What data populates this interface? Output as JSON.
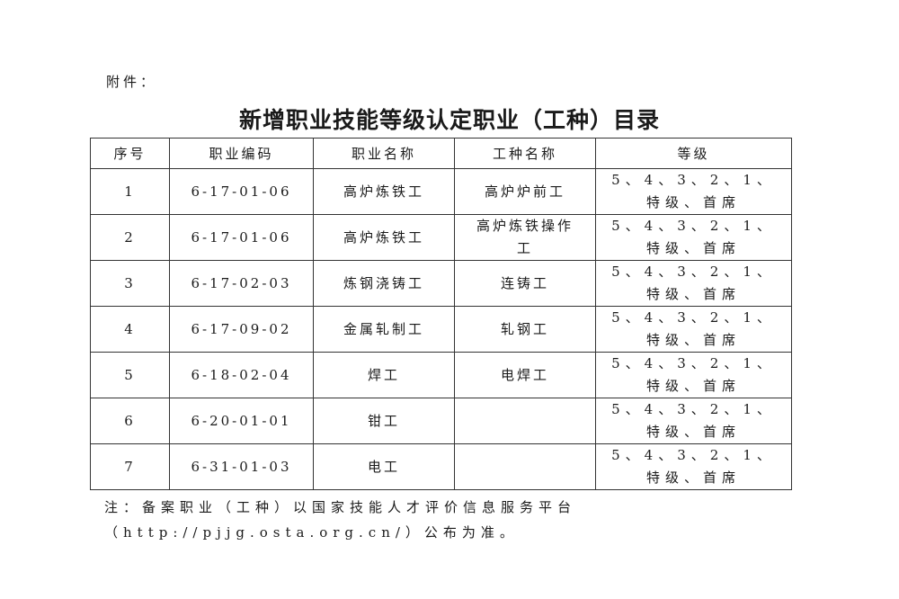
{
  "attachment_label": "附件：",
  "title": "新增职业技能等级认定职业（工种）目录",
  "table": {
    "headers": [
      "序号",
      "职业编码",
      "职业名称",
      "工种名称",
      "等级"
    ],
    "rows": [
      {
        "no": "1",
        "code": "6-17-01-06",
        "occupation": "高炉炼铁工",
        "work_type": "高炉炉前工",
        "level_1": "5、4、3、2、1、",
        "level_2": "特级、首席"
      },
      {
        "no": "2",
        "code": "6-17-01-06",
        "occupation": "高炉炼铁工",
        "work_type": "高炉炼铁操作工",
        "level_1": "5、4、3、2、1、",
        "level_2": "特级、首席"
      },
      {
        "no": "3",
        "code": "6-17-02-03",
        "occupation": "炼钢浇铸工",
        "work_type": "连铸工",
        "level_1": "5、4、3、2、1、",
        "level_2": "特级、首席"
      },
      {
        "no": "4",
        "code": "6-17-09-02",
        "occupation": "金属轧制工",
        "work_type": "轧钢工",
        "level_1": "5、4、3、2、1、",
        "level_2": "特级、首席"
      },
      {
        "no": "5",
        "code": "6-18-02-04",
        "occupation": "焊工",
        "work_type": "电焊工",
        "level_1": "5、4、3、2、1、",
        "level_2": "特级、首席"
      },
      {
        "no": "6",
        "code": "6-20-01-01",
        "occupation": "钳工",
        "work_type": "",
        "level_1": "5、4、3、2、1、",
        "level_2": "特级、首席"
      },
      {
        "no": "7",
        "code": "6-31-01-03",
        "occupation": "电工",
        "work_type": "",
        "level_1": "5、4、3、2、1、",
        "level_2": "特级、首席"
      }
    ]
  },
  "note": {
    "line1": "注：备案职业（工种）以国家技能人才评价信息服务平台",
    "line2": "（http://pjjg.osta.org.cn/）公布为准。"
  }
}
